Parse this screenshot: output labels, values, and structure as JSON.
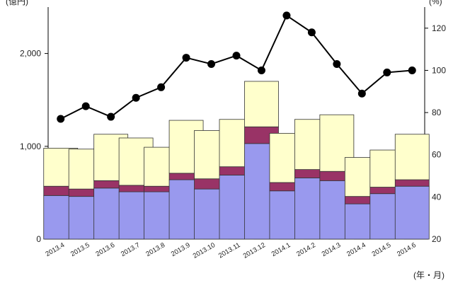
{
  "chart_data": {
    "type": "bar",
    "stacked": true,
    "categories": [
      "2013.4",
      "2013.5",
      "2013.6",
      "2013.7",
      "2013.8",
      "2013.9",
      "2013.10",
      "2013.11",
      "2013.12",
      "2014.1",
      "2014.2",
      "2014.3",
      "2014.4",
      "2014.5",
      "2014.6"
    ],
    "series": [
      {
        "values": [
          470,
          460,
          550,
          510,
          510,
          640,
          540,
          690,
          1030,
          520,
          660,
          630,
          380,
          490,
          570
        ],
        "color": "#9999ee"
      },
      {
        "values": [
          100,
          80,
          80,
          70,
          60,
          70,
          110,
          90,
          180,
          90,
          90,
          100,
          80,
          70,
          70
        ],
        "color": "#993366"
      },
      {
        "values": [
          410,
          430,
          500,
          510,
          420,
          570,
          520,
          510,
          490,
          530,
          540,
          610,
          420,
          400,
          490
        ],
        "color": "#ffffcc"
      }
    ],
    "line_series": {
      "axis": "right",
      "values": [
        77,
        83,
        78,
        87,
        92,
        106,
        103,
        107,
        100,
        126,
        118,
        103,
        89,
        99,
        100
      ],
      "color": "#000000"
    },
    "ylim_left": [
      0,
      2500
    ],
    "yticks_left": [
      0,
      1000,
      2000
    ],
    "ytick_labels_left": [
      "0",
      "1,000",
      "2,000"
    ],
    "ylim_right": [
      20,
      130
    ],
    "yticks_right": [
      20,
      40,
      60,
      80,
      100,
      120
    ],
    "ylabel_left": "(億円)",
    "ylabel_right": "(%)",
    "xlabel": "(年・月)",
    "grid": false
  }
}
